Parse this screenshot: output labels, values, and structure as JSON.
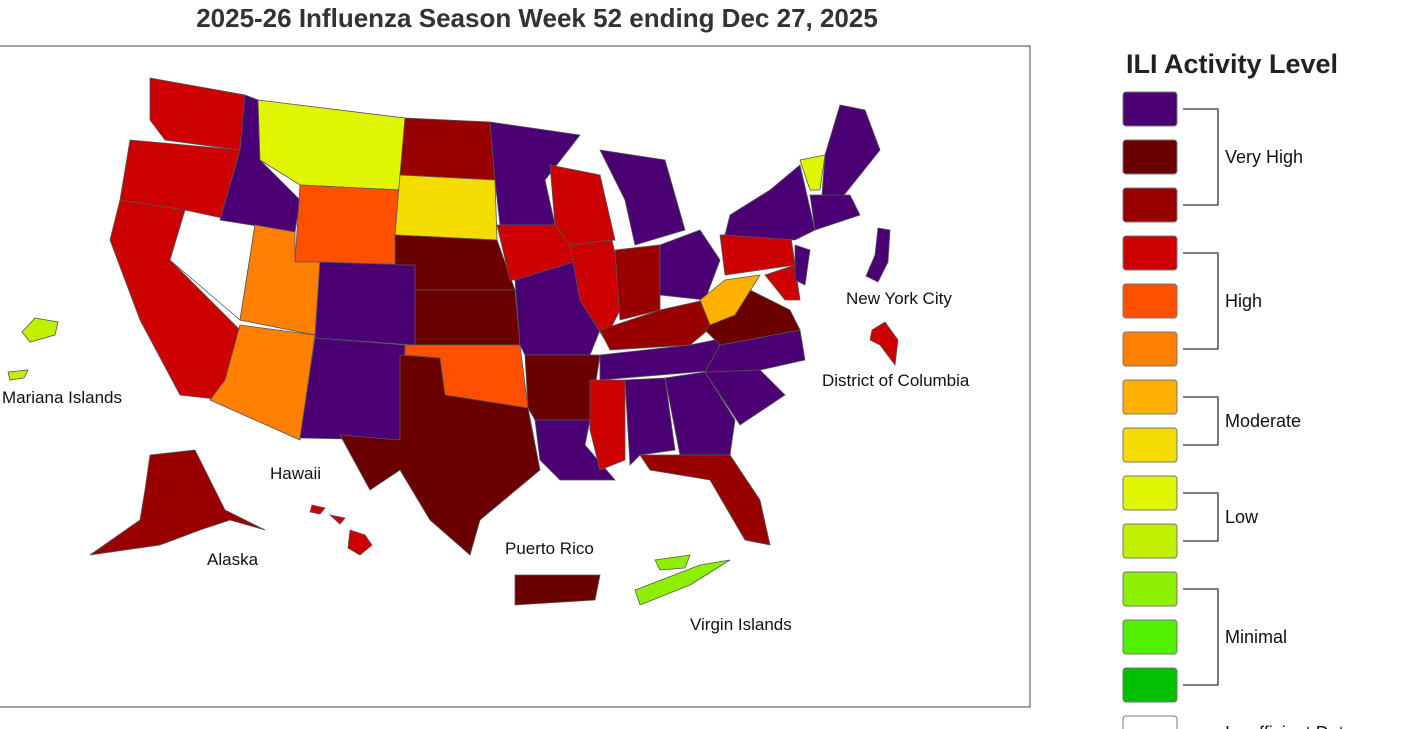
{
  "header": {
    "title": "2025-26 Influenza Season Week 52 ending Dec 27, 2025"
  },
  "map": {
    "labels": [
      "New York City",
      "District of Columbia",
      "Mariana Islands",
      "Hawaii",
      "Alaska",
      "Puerto Rico",
      "Virgin Islands"
    ]
  },
  "legend": {
    "title": "ILI Activity Level",
    "groups": [
      {
        "label": "Very High",
        "colors": [
          "#4b0073",
          "#6b0000",
          "#990000"
        ]
      },
      {
        "label": "High",
        "colors": [
          "#cc0000",
          "#ff5000",
          "#ff8000"
        ]
      },
      {
        "label": "Moderate",
        "colors": [
          "#ffb000",
          "#f5dc00"
        ]
      },
      {
        "label": "Low",
        "colors": [
          "#e0f500",
          "#c0f000"
        ]
      },
      {
        "label": "Minimal",
        "colors": [
          "#8cf000",
          "#50f000",
          "#00c000"
        ]
      },
      {
        "label": "Insufficient Data",
        "colors": [
          "#ffffff"
        ]
      }
    ]
  }
}
